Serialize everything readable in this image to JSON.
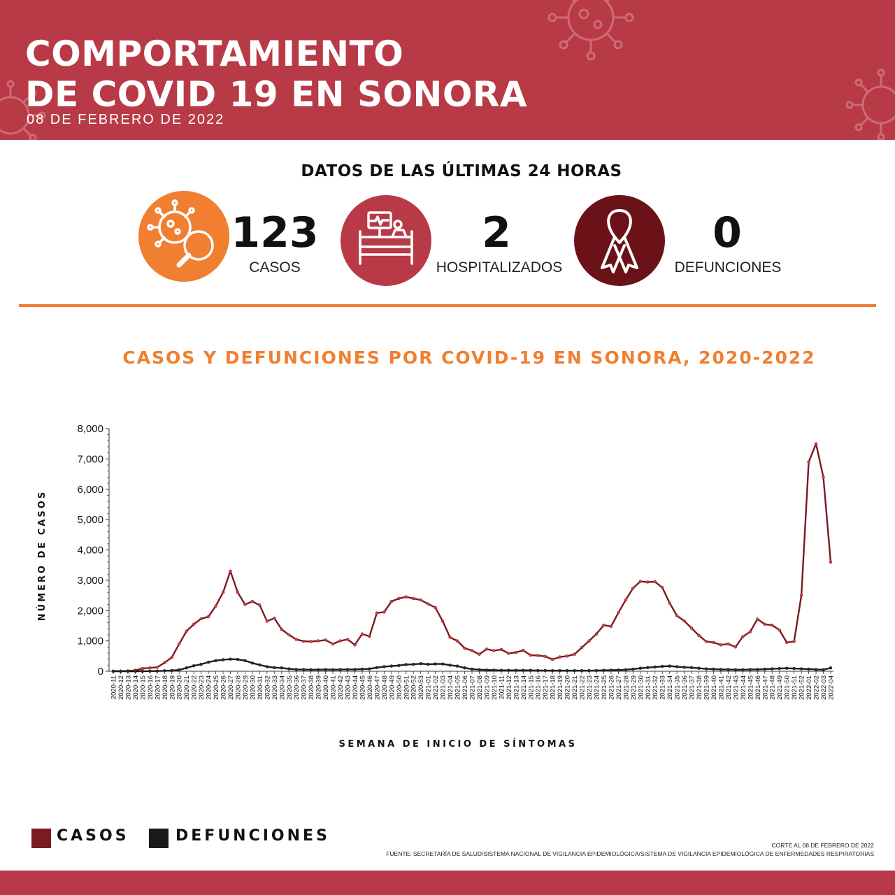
{
  "header": {
    "title_line1": "COMPORTAMIENTO",
    "title_line2": "DE COVID 19 EN SONORA",
    "date": "08 DE FEBRERO DE 2022"
  },
  "stats": {
    "heading": "DATOS DE LAS ÚLTIMAS 24 HORAS",
    "cases": {
      "value": "123",
      "label": "CASOS",
      "icon": "virus-search-icon",
      "color": "#f07f32"
    },
    "hospitalized": {
      "value": "2",
      "label": "HOSPITALIZADOS",
      "icon": "hospital-bed-icon",
      "color": "#b83a47"
    },
    "deaths": {
      "value": "0",
      "label": "DEFUNCIONES",
      "icon": "ribbon-icon",
      "color": "#6b1218"
    }
  },
  "chart_data": {
    "type": "line",
    "title": "CASOS Y DEFUNCIONES POR COVID-19 EN SONORA, 2020-2022",
    "xlabel": "SEMANA DE INICIO DE SÍNTOMAS",
    "ylabel": "NÚMERO DE CASOS",
    "ylim": [
      0,
      8000
    ],
    "yticks": [
      0,
      1000,
      2000,
      3000,
      4000,
      5000,
      6000,
      7000,
      8000
    ],
    "ytick_labels": [
      "0",
      "1,000",
      "2,000",
      "3,000",
      "4,000",
      "5,000",
      "6,000",
      "7,000",
      "8,000"
    ],
    "grid": false,
    "categories": [
      "2020-11",
      "2020-12",
      "2020-13",
      "2020-14",
      "2020-15",
      "2020-16",
      "2020-17",
      "2020-18",
      "2020-19",
      "2020-20",
      "2020-21",
      "2020-22",
      "2020-23",
      "2020-24",
      "2020-25",
      "2020-26",
      "2020-27",
      "2020-28",
      "2020-29",
      "2020-30",
      "2020-31",
      "2020-32",
      "2020-33",
      "2020-34",
      "2020-35",
      "2020-36",
      "2020-37",
      "2020-38",
      "2020-39",
      "2020-40",
      "2020-41",
      "2020-42",
      "2020-43",
      "2020-44",
      "2020-45",
      "2020-46",
      "2020-47",
      "2020-48",
      "2020-49",
      "2020-50",
      "2020-51",
      "2020-52",
      "2020-53",
      "2021-01",
      "2021-02",
      "2021-03",
      "2021-04",
      "2021-05",
      "2021-06",
      "2021-07",
      "2021-08",
      "2021-09",
      "2021-10",
      "2021-11",
      "2021-12",
      "2021-13",
      "2021-14",
      "2021-15",
      "2021-16",
      "2021-17",
      "2021-18",
      "2021-19",
      "2021-20",
      "2021-21",
      "2021-22",
      "2021-23",
      "2021-24",
      "2021-25",
      "2021-26",
      "2021-27",
      "2021-28",
      "2021-29",
      "2021-30",
      "2021-31",
      "2021-32",
      "2021-33",
      "2021-34",
      "2021-35",
      "2021-36",
      "2021-37",
      "2021-38",
      "2021-39",
      "2021-40",
      "2021-41",
      "2021-42",
      "2021-43",
      "2021-44",
      "2021-45",
      "2021-46",
      "2021-47",
      "2021-48",
      "2021-49",
      "2021-50",
      "2021-51",
      "2021-52",
      "2022-01",
      "2022-02",
      "2022-03",
      "2022-04"
    ],
    "series": [
      {
        "name": "CASOS",
        "color": "#7a1a22",
        "marker_color": "#e0443f",
        "values": [
          3,
          5,
          10,
          30,
          90,
          110,
          130,
          280,
          460,
          900,
          1320,
          1550,
          1730,
          1800,
          2150,
          2600,
          3300,
          2600,
          2200,
          2300,
          2180,
          1650,
          1750,
          1380,
          1200,
          1050,
          990,
          980,
          1000,
          1030,
          900,
          1000,
          1050,
          870,
          1230,
          1150,
          1920,
          1950,
          2300,
          2400,
          2450,
          2400,
          2350,
          2220,
          2100,
          1650,
          1120,
          1000,
          760,
          680,
          560,
          730,
          680,
          720,
          590,
          620,
          690,
          530,
          520,
          490,
          390,
          470,
          500,
          560,
          780,
          1000,
          1230,
          1520,
          1480,
          1930,
          2350,
          2740,
          2960,
          2940,
          2950,
          2760,
          2250,
          1830,
          1660,
          1420,
          1180,
          980,
          950,
          870,
          900,
          800,
          1140,
          1300,
          1720,
          1550,
          1520,
          1360,
          950,
          980,
          2500,
          6900,
          7500,
          6400,
          3600
        ]
      },
      {
        "name": "DEFUNCIONES",
        "color": "#1a1a1a",
        "marker_color": "#2e2e2e",
        "values": [
          0,
          0,
          0,
          0,
          2,
          5,
          8,
          15,
          25,
          45,
          110,
          180,
          230,
          300,
          350,
          380,
          400,
          390,
          350,
          270,
          210,
          150,
          120,
          110,
          80,
          60,
          55,
          50,
          50,
          55,
          50,
          55,
          60,
          60,
          70,
          80,
          120,
          150,
          170,
          190,
          220,
          230,
          250,
          230,
          240,
          240,
          200,
          170,
          110,
          70,
          50,
          40,
          35,
          30,
          30,
          30,
          30,
          30,
          25,
          25,
          20,
          20,
          20,
          20,
          20,
          20,
          25,
          30,
          35,
          40,
          50,
          70,
          100,
          120,
          140,
          160,
          170,
          150,
          130,
          120,
          100,
          80,
          70,
          60,
          55,
          50,
          50,
          55,
          60,
          70,
          80,
          90,
          100,
          90,
          80,
          70,
          60,
          50,
          110
        ]
      }
    ]
  },
  "legend": {
    "cases_label": "CASOS",
    "deaths_label": "DEFUNCIONES"
  },
  "footnote": {
    "cutoff": "CORTE AL 08 DE FEBRERO DE 2022",
    "source": "FUENTE: SECRETARÍA DE SALUD/SISTEMA NACIONAL DE VIGILANCIA EPIDEMIOLÓGICA/SISTEMA DE VIGILANCIA EPIDEMIOLÓGICA DE ENFERMEDADES RESPIRATORIAS"
  },
  "colors": {
    "brand_red": "#b83a47",
    "orange": "#f07f32",
    "dark_red": "#6b1218"
  }
}
